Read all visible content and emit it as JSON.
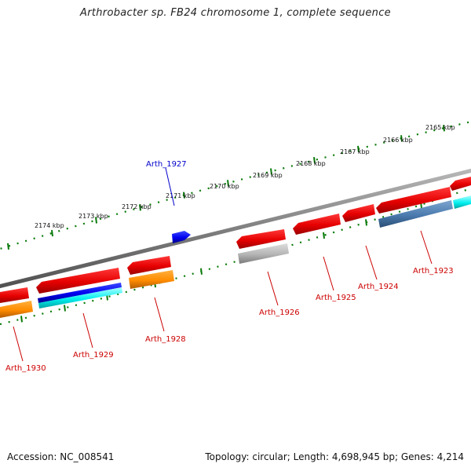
{
  "title": "Arthrobacter sp. FB24 chromosome 1, complete sequence",
  "footer": {
    "accession": "Accession: NC_008541",
    "summary": "Topology: circular; Length: 4,698,945 bp; Genes: 4,214"
  },
  "colors": {
    "label_forward": "#0000cc",
    "label_reverse": "#cc0000",
    "tick": "#0a7a0a",
    "backbone": "#808080"
  },
  "ruler": {
    "major_ticks": [
      "2165 kbp",
      "2166 kbp",
      "2167 kbp",
      "2168 kbp",
      "2169 kbp",
      "2170 kbp",
      "2171 kbp",
      "2172 kbp",
      "2173 kbp",
      "2174 kbp"
    ]
  },
  "genes": [
    {
      "name": "Arth_1927",
      "strand": "forward"
    },
    {
      "name": "Arth_1923",
      "strand": "reverse"
    },
    {
      "name": "Arth_1924",
      "strand": "reverse"
    },
    {
      "name": "Arth_1925",
      "strand": "reverse"
    },
    {
      "name": "Arth_1926",
      "strand": "reverse"
    },
    {
      "name": "Arth_1928",
      "strand": "reverse"
    },
    {
      "name": "Arth_1929",
      "strand": "reverse"
    },
    {
      "name": "Arth_1930",
      "strand": "reverse"
    }
  ]
}
